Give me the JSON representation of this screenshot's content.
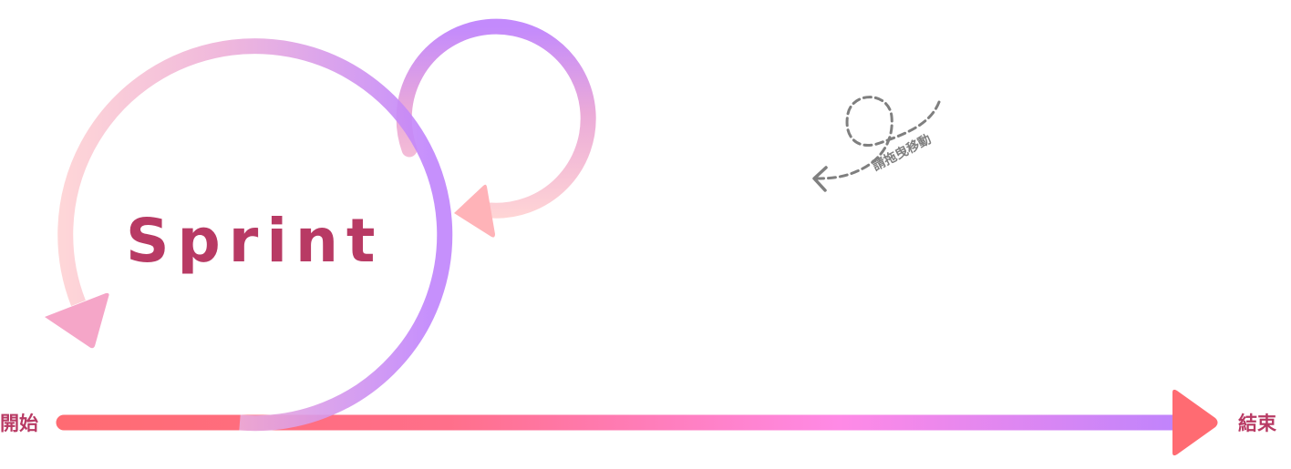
{
  "timeline": {
    "start_label": "開始",
    "end_label": "結束"
  },
  "sprint": {
    "title": "Sprint"
  },
  "drag_hint": {
    "text": "請拖曳移動",
    "icon": "dashed-loop-arrow-icon"
  },
  "colors": {
    "label": "#b83a64",
    "coral": "#ff6b72",
    "pink": "#ff8ae6",
    "lavender": "#c084fc",
    "light_pink": "#ffd0d0",
    "hint_gray": "#7f7f7f"
  }
}
